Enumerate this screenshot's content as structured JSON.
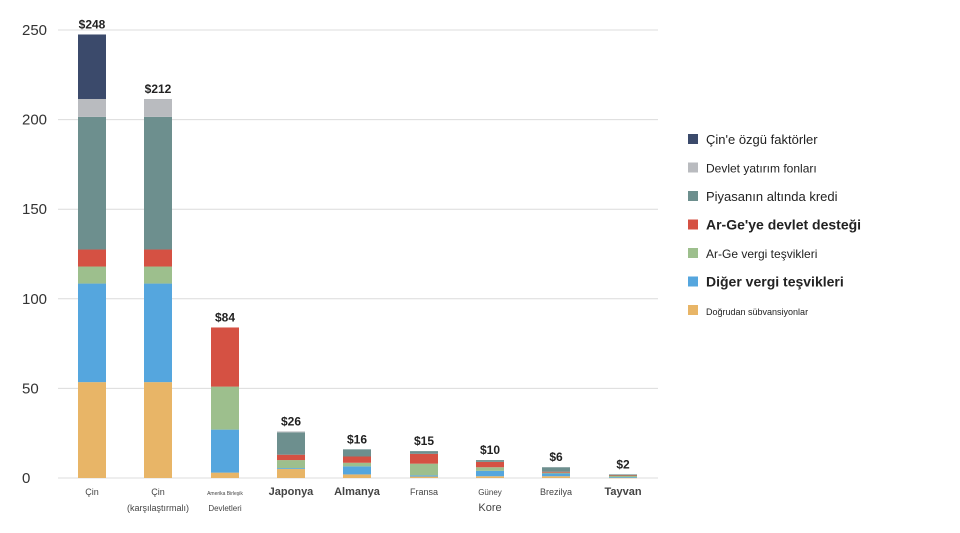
{
  "chart_data": {
    "type": "bar",
    "stacked": true,
    "ylim": [
      0,
      250
    ],
    "yticks": [
      0,
      50,
      100,
      150,
      200,
      250
    ],
    "grid": true,
    "legend_position": "right",
    "categories": [
      {
        "lines": [
          "Çin"
        ],
        "size": "small"
      },
      {
        "lines": [
          "Çin",
          "(karşılaştırmalı)"
        ],
        "size": "small"
      },
      {
        "lines": [
          "Amerika Birleşik",
          "Devletleri"
        ],
        "size": "tiny"
      },
      {
        "lines": [
          "Japonya"
        ],
        "size": "medium"
      },
      {
        "lines": [
          "Almanya"
        ],
        "size": "medium"
      },
      {
        "lines": [
          "Fransa"
        ],
        "size": "small"
      },
      {
        "lines": [
          "Güney",
          "Kore"
        ],
        "size": "mixed"
      },
      {
        "lines": [
          "Brezilya"
        ],
        "size": "small"
      },
      {
        "lines": [
          "Tayvan"
        ],
        "size": "medium"
      }
    ],
    "totals": [
      "$248",
      "$212",
      "$84",
      "$26",
      "$16",
      "$15",
      "$10",
      "$6",
      "$2"
    ],
    "series": [
      {
        "name": "Doğrudan sübvansiyonlar",
        "color": "#e8b567",
        "values": [
          53.5,
          53.5,
          3,
          5,
          2,
          0.8,
          1,
          1,
          0.3
        ]
      },
      {
        "name": "Diğer vergi teşvikleri",
        "color": "#55a6de",
        "values": [
          55,
          55,
          24,
          0.5,
          4.5,
          0.7,
          3,
          1.5,
          0.2
        ]
      },
      {
        "name": "Ar-Ge vergi teşvikleri",
        "color": "#9dbf8d",
        "values": [
          9.5,
          9.5,
          24,
          4.5,
          2,
          6.5,
          2,
          0.5,
          1
        ]
      },
      {
        "name": "Ar-Ge'ye devlet desteği",
        "color": "#d55143",
        "values": [
          9.5,
          9.5,
          33,
          3,
          3.5,
          5.5,
          3,
          0.5,
          0.2
        ]
      },
      {
        "name": "Piyasanın altında kredi",
        "color": "#6d8f8e",
        "values": [
          74,
          74,
          0,
          12.5,
          4,
          1.5,
          1,
          2.5,
          0.3
        ]
      },
      {
        "name": "Devlet yatırım fonları",
        "color": "#b9bbbf",
        "values": [
          10,
          10,
          0,
          0.5,
          0,
          0,
          0,
          0,
          0
        ]
      },
      {
        "name": "Çin'e özgü faktörler",
        "color": "#3b4a6b",
        "values": [
          36,
          0,
          0,
          0,
          0,
          0,
          0,
          0,
          0
        ]
      }
    ],
    "legend_order": [
      6,
      5,
      4,
      3,
      2,
      1,
      0
    ],
    "legend_sizes": [
      "l",
      "m",
      "l",
      "xl",
      "m",
      "xl",
      "s"
    ]
  }
}
